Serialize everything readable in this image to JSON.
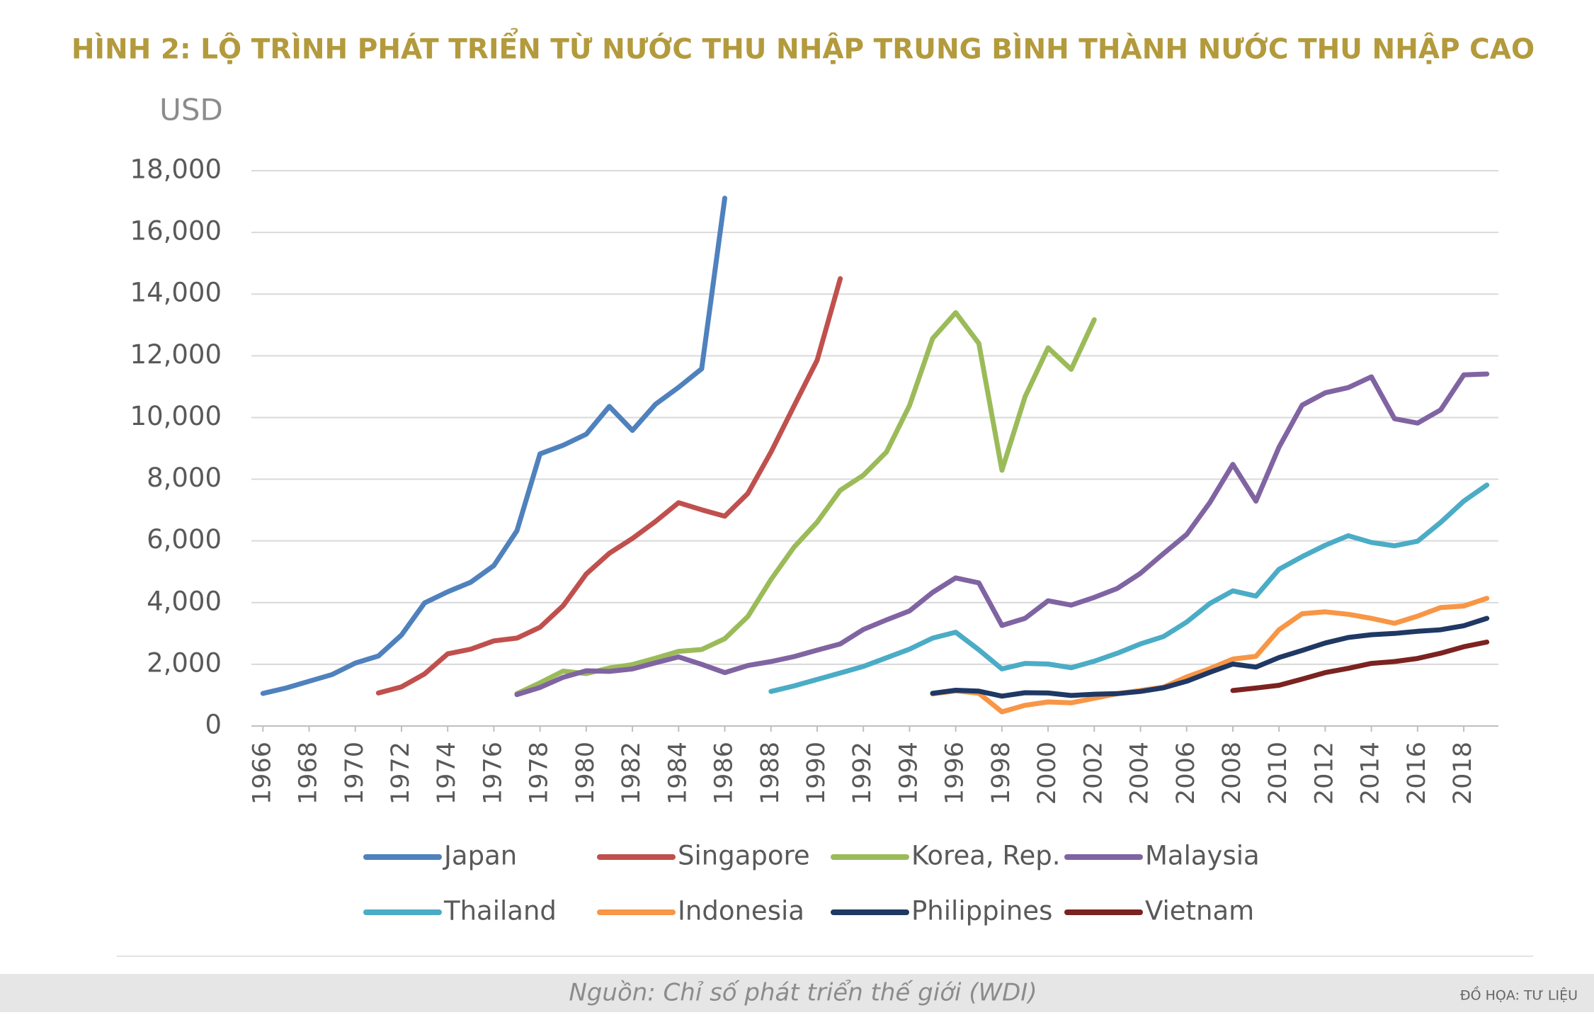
{
  "chart_data": {
    "type": "line",
    "title": "HÌNH 2: LỘ TRÌNH PHÁT TRIỂN TỪ NƯỚC THU NHẬP TRUNG BÌNH THÀNH NƯỚC THU NHẬP CAO",
    "y_label": "USD",
    "source": "Nguồn: Chỉ số phát triển thế giới (WDI)",
    "credit": "ĐỒ HỌA:  TƯ LIỆU",
    "x": [
      1966,
      1967,
      1968,
      1969,
      1970,
      1971,
      1972,
      1973,
      1974,
      1975,
      1976,
      1977,
      1978,
      1979,
      1980,
      1981,
      1982,
      1983,
      1984,
      1985,
      1986,
      1987,
      1988,
      1989,
      1990,
      1991,
      1992,
      1993,
      1994,
      1995,
      1996,
      1997,
      1998,
      1999,
      2000,
      2001,
      2002,
      2003,
      2004,
      2005,
      2006,
      2007,
      2008,
      2009,
      2010,
      2011,
      2012,
      2013,
      2014,
      2015,
      2016,
      2017,
      2018,
      2019
    ],
    "xlim": [
      1965.5,
      2019.5
    ],
    "xticks": [
      1966,
      1968,
      1970,
      1972,
      1974,
      1976,
      1978,
      1980,
      1982,
      1984,
      1986,
      1988,
      1990,
      1992,
      1994,
      1996,
      1998,
      2000,
      2002,
      2004,
      2006,
      2008,
      2010,
      2012,
      2014,
      2016,
      2018
    ],
    "ylim": [
      0,
      18000
    ],
    "yticks": [
      {
        "value": 0,
        "label": "0"
      },
      {
        "value": 2000,
        "label": "2,000"
      },
      {
        "value": 4000,
        "label": "4,000"
      },
      {
        "value": 6000,
        "label": "6,000"
      },
      {
        "value": 8000,
        "label": "8,000"
      },
      {
        "value": 10000,
        "label": "10,000"
      },
      {
        "value": 12000,
        "label": "12,000"
      },
      {
        "value": 14000,
        "label": "14,000"
      },
      {
        "value": 16000,
        "label": "16,000"
      },
      {
        "value": 18000,
        "label": "18,000"
      }
    ],
    "grid": true,
    "legend": "bottom",
    "series": [
      {
        "name": "Japan",
        "color": "#4f81bd",
        "values": [
          1055,
          1230,
          1450,
          1670,
          2040,
          2270,
          2950,
          3990,
          4350,
          4660,
          5200,
          6330,
          8820,
          9100,
          9460,
          10360,
          9580,
          10430,
          10980,
          11580,
          17110,
          null,
          null,
          null,
          null,
          null,
          null,
          null,
          null,
          null,
          null,
          null,
          null,
          null,
          null,
          null,
          null,
          null,
          null,
          null,
          null,
          null,
          null,
          null,
          null,
          null,
          null,
          null,
          null,
          null,
          null,
          null,
          null,
          null
        ]
      },
      {
        "name": "Singapore",
        "color": "#c0504d",
        "values": [
          null,
          null,
          null,
          null,
          null,
          1071,
          1270,
          1690,
          2340,
          2490,
          2760,
          2850,
          3200,
          3900,
          4930,
          5600,
          6080,
          6630,
          7240,
          7010,
          6800,
          7540,
          8880,
          10380,
          11860,
          14500,
          null,
          null,
          null,
          null,
          null,
          null,
          null,
          null,
          null,
          null,
          null,
          null,
          null,
          null,
          null,
          null,
          null,
          null,
          null,
          null,
          null,
          null,
          null,
          null,
          null,
          null,
          null,
          null
        ]
      },
      {
        "name": "Korea, Rep.",
        "color": "#9bbb59",
        "values": [
          null,
          null,
          null,
          null,
          null,
          null,
          null,
          null,
          null,
          null,
          null,
          1050,
          1400,
          1780,
          1700,
          1880,
          1990,
          2200,
          2420,
          2480,
          2830,
          3550,
          4750,
          5800,
          6610,
          7640,
          8130,
          8880,
          10390,
          12560,
          13400,
          12400,
          8290,
          10670,
          12260,
          11560,
          13170,
          null,
          null,
          null,
          null,
          null,
          null,
          null,
          null,
          null,
          null,
          null,
          null,
          null,
          null,
          null,
          null,
          null
        ]
      },
      {
        "name": "Malaysia",
        "color": "#8064a2",
        "values": [
          null,
          null,
          null,
          null,
          null,
          null,
          null,
          null,
          null,
          null,
          null,
          1020,
          1250,
          1580,
          1790,
          1770,
          1850,
          2050,
          2240,
          2000,
          1730,
          1960,
          2090,
          2250,
          2460,
          2660,
          3130,
          3440,
          3730,
          4330,
          4800,
          4640,
          3260,
          3490,
          4060,
          3920,
          4170,
          4460,
          4950,
          5590,
          6210,
          7240,
          8480,
          7290,
          9040,
          10400,
          10800,
          10970,
          11320,
          9960,
          9820,
          10250,
          11380,
          11410
        ]
      },
      {
        "name": "Thailand",
        "color": "#4bacc6",
        "values": [
          null,
          null,
          null,
          null,
          null,
          null,
          null,
          null,
          null,
          null,
          null,
          null,
          null,
          null,
          null,
          null,
          null,
          null,
          null,
          null,
          null,
          null,
          1120,
          1300,
          1510,
          1720,
          1930,
          2210,
          2490,
          2850,
          3040,
          2470,
          1850,
          2030,
          2010,
          1890,
          2100,
          2360,
          2660,
          2900,
          3370,
          3970,
          4380,
          4210,
          5080,
          5490,
          5860,
          6170,
          5950,
          5840,
          5990,
          6600,
          7290,
          7810
        ]
      },
      {
        "name": "Indonesia",
        "color": "#f79646",
        "values": [
          null,
          null,
          null,
          null,
          null,
          null,
          null,
          null,
          null,
          null,
          null,
          null,
          null,
          null,
          null,
          null,
          null,
          null,
          null,
          null,
          null,
          null,
          null,
          null,
          null,
          null,
          null,
          null,
          null,
          1040,
          1140,
          1060,
          460,
          670,
          780,
          750,
          900,
          1050,
          1150,
          1260,
          1590,
          1860,
          2170,
          2260,
          3120,
          3640,
          3700,
          3620,
          3490,
          3330,
          3560,
          3840,
          3890,
          4140
        ]
      },
      {
        "name": "Philippines",
        "color": "#1f3864",
        "values": [
          null,
          null,
          null,
          null,
          null,
          null,
          null,
          null,
          null,
          null,
          null,
          null,
          null,
          null,
          null,
          null,
          null,
          null,
          null,
          null,
          null,
          null,
          null,
          null,
          null,
          null,
          null,
          null,
          null,
          1060,
          1160,
          1130,
          970,
          1080,
          1070,
          990,
          1030,
          1050,
          1120,
          1240,
          1450,
          1740,
          2010,
          1910,
          2220,
          2450,
          2690,
          2870,
          2960,
          3000,
          3070,
          3120,
          3250,
          3490
        ]
      },
      {
        "name": "Vietnam",
        "color": "#7b2321",
        "values": [
          null,
          null,
          null,
          null,
          null,
          null,
          null,
          null,
          null,
          null,
          null,
          null,
          null,
          null,
          null,
          null,
          null,
          null,
          null,
          null,
          null,
          null,
          null,
          null,
          null,
          null,
          null,
          null,
          null,
          null,
          null,
          null,
          null,
          null,
          null,
          null,
          null,
          null,
          null,
          null,
          null,
          null,
          1150,
          1230,
          1320,
          1520,
          1730,
          1870,
          2030,
          2090,
          2190,
          2360,
          2570,
          2720
        ]
      }
    ]
  }
}
